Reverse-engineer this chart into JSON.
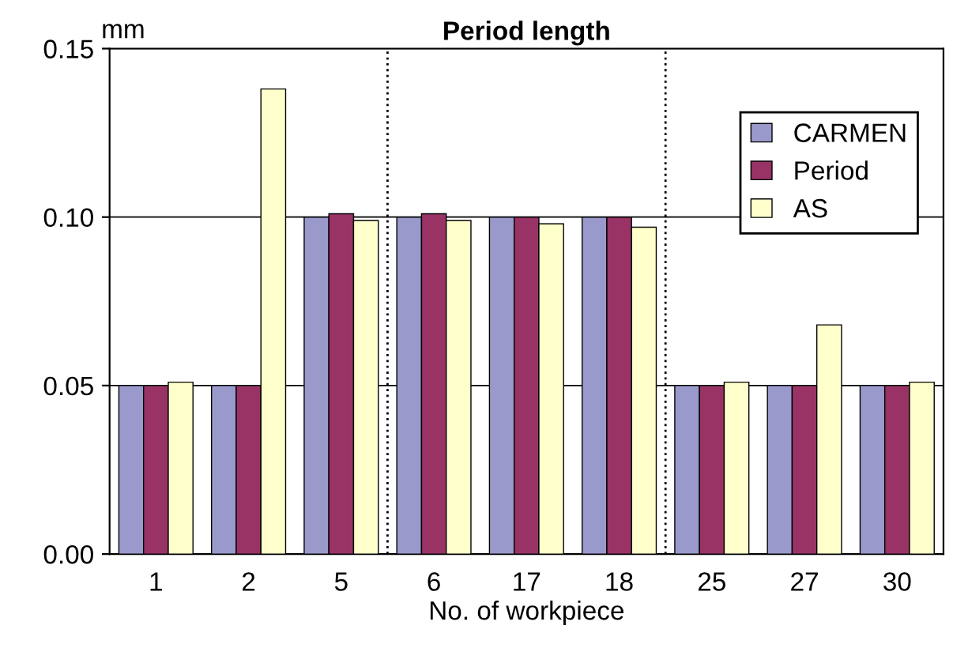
{
  "chart_data": {
    "type": "bar",
    "title": "Period length",
    "xlabel": "No. of workpiece",
    "ylabel": "mm",
    "categories": [
      "1",
      "2",
      "5",
      "6",
      "17",
      "18",
      "25",
      "27",
      "30"
    ],
    "series": [
      {
        "name": "CARMEN",
        "color": "#9999cc",
        "values": [
          0.05,
          0.05,
          0.1,
          0.1,
          0.1,
          0.1,
          0.05,
          0.05,
          0.05
        ]
      },
      {
        "name": "Period",
        "color": "#993366",
        "values": [
          0.05,
          0.05,
          0.101,
          0.101,
          0.1,
          0.1,
          0.05,
          0.05,
          0.05
        ]
      },
      {
        "name": "AS",
        "color": "#ffffcc",
        "values": [
          0.051,
          0.138,
          0.099,
          0.099,
          0.098,
          0.097,
          0.051,
          0.068,
          0.051
        ]
      }
    ],
    "ylim": [
      0,
      0.15
    ],
    "yticks": [
      {
        "value": 0,
        "label": "0.00"
      },
      {
        "value": 0.05,
        "label": "0.05"
      },
      {
        "value": 0.1,
        "label": "0.10"
      },
      {
        "value": 0.15,
        "label": "0.15"
      }
    ],
    "grid": "y",
    "legend": "top right"
  }
}
